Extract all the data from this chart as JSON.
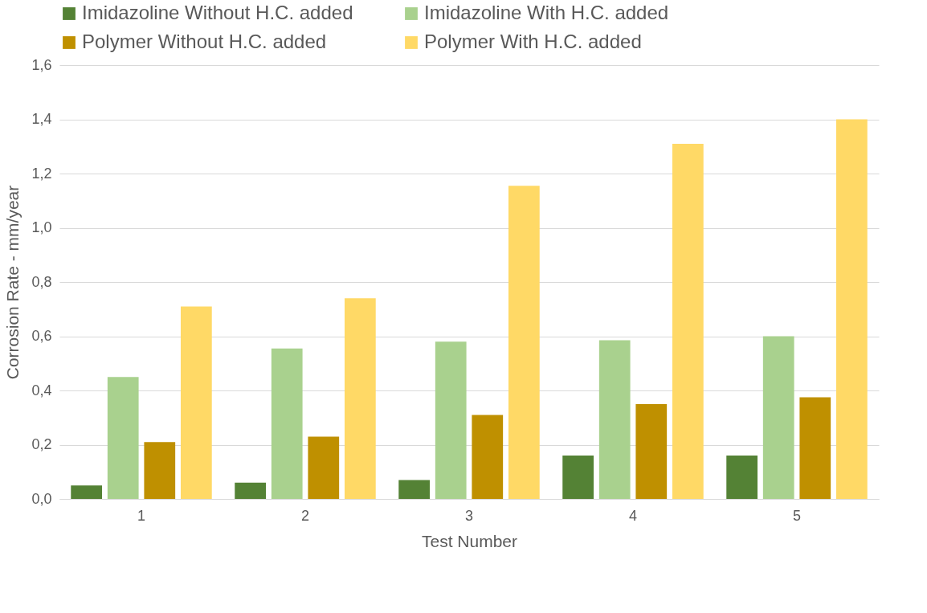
{
  "chart_data": {
    "type": "bar",
    "xlabel": "Test Number",
    "ylabel": "Corrosion Rate - mm/year",
    "categories": [
      "1",
      "2",
      "3",
      "4",
      "5"
    ],
    "series": [
      {
        "name": "Imidazoline Without H.C. added",
        "color": "#548235",
        "values": [
          0.05,
          0.06,
          0.07,
          0.16,
          0.16
        ]
      },
      {
        "name": "Imidazoline With H.C. added",
        "color": "#a9d18e",
        "values": [
          0.45,
          0.555,
          0.58,
          0.585,
          0.6
        ]
      },
      {
        "name": "Polymer Without H.C. added",
        "color": "#bf9000",
        "values": [
          0.21,
          0.23,
          0.31,
          0.35,
          0.375
        ]
      },
      {
        "name": "Polymer With H.C. added",
        "color": "#ffd966",
        "values": [
          0.71,
          0.74,
          1.155,
          1.31,
          1.4
        ]
      }
    ],
    "ylim": [
      0,
      1.6
    ],
    "yticks": [
      {
        "value": 0,
        "label": "0,0"
      },
      {
        "value": 0.2,
        "label": "0,2"
      },
      {
        "value": 0.4,
        "label": "0,4"
      },
      {
        "value": 0.6,
        "label": "0,6"
      },
      {
        "value": 0.8,
        "label": "0,8"
      },
      {
        "value": 1,
        "label": "1,0"
      },
      {
        "value": 1.2,
        "label": "1,2"
      },
      {
        "value": 1.4,
        "label": "1,4"
      },
      {
        "value": 1.6,
        "label": "1,6"
      }
    ],
    "grid": "y",
    "legend": "top"
  }
}
